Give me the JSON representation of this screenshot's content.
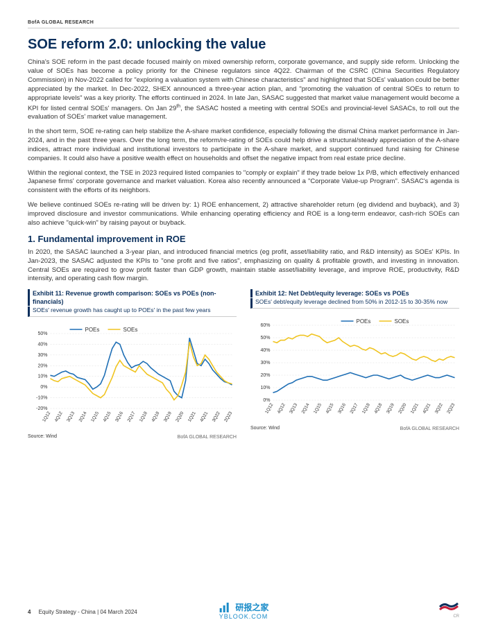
{
  "header": {
    "brand": "BofA GLOBAL RESEARCH"
  },
  "title": "SOE reform 2.0: unlocking the value",
  "paragraphs": [
    "China's SOE reform in the past decade focused mainly on mixed ownership reform, corporate governance, and supply side reform. Unlocking the value of SOEs has become a policy priority for the Chinese regulators since 4Q22. Chairman of the CSRC (China Securities Regulatory Commission) in Nov-2022 called for \"exploring a valuation system with Chinese characteristics\" and highlighted that SOEs' valuation could be better appreciated by the market. In Dec-2022, SHEX announced a three-year action plan, and \"promoting the valuation of central SOEs to return to appropriate levels\" was a key priority. The efforts continued in 2024. In late Jan, SASAC suggested that market value management would become a KPI for listed central SOEs' managers. On Jan 29",
    ", the SASAC hosted a meeting with central SOEs and provincial-level SASACs, to roll out the evaluation of SOEs' market value management.",
    "In the short term, SOE re-rating can help stabilize the A-share market confidence, especially following the dismal China market performance in Jan-2024, and in the past three years. Over the long term, the reform/re-rating of SOEs could help drive a structural/steady appreciation of the A-share indices, attract more individual and institutional investors to participate in the A-share market, and support continued fund raising for Chinese companies. It could also have a positive wealth effect on households and offset the negative impact from real estate price decline.",
    "Within the regional context, the TSE in 2023 required listed companies to \"comply or explain\" if they trade below 1x P/B, which effectively enhanced Japanese firms' corporate governance and market valuation. Korea also recently announced a \"Corporate Value-up Program\". SASAC's agenda is consistent with the efforts of its neighbors.",
    "We believe continued SOEs re-rating will be driven by: 1) ROE enhancement, 2) attractive shareholder return (eg dividend and buyback), and 3) improved disclosure and investor communications. While enhancing operating efficiency and ROE is a long-term endeavor, cash-rich SOEs can also achieve \"quick-win\" by raising payout or buyback."
  ],
  "p1_sup": "th",
  "section1": {
    "heading": "1.  Fundamental improvement in ROE",
    "body": "In 2020, the SASAC launched a 3-year plan, and introduced financial metrics (eg profit, asset/liability ratio, and R&D intensity) as SOEs' KPIs. In Jan-2023, the SASAC adjusted the KPIs to \"one profit and five ratios\", emphasizing on quality & profitable growth, and investing in innovation. Central SOEs are required to grow profit faster than GDP growth, maintain stable asset/liability leverage, and improve ROE, productivity, R&D intensity, and operating cash flow margin."
  },
  "chart11": {
    "title": "Exhibit 11: Revenue growth comparison: SOEs vs POEs (non-financials)",
    "subtitle": "SOEs' revenue growth has caught up to POEs' in the past few years",
    "type": "line",
    "legend": {
      "poe": "POEs",
      "soe": "SOEs"
    },
    "x_labels": [
      "1Q12",
      "4Q12",
      "3Q13",
      "2Q14",
      "1Q15",
      "4Q15",
      "3Q16",
      "2Q17",
      "1Q18",
      "4Q18",
      "3Q19",
      "2Q20",
      "1Q21",
      "4Q21",
      "3Q22",
      "2Q23"
    ],
    "y_ticks": [
      "-20%",
      "-10%",
      "0%",
      "10%",
      "20%",
      "30%",
      "40%",
      "50%"
    ],
    "ylim": [
      -20,
      50
    ],
    "poe_color": "#1f6fb5",
    "soe_color": "#f0c420",
    "grid_color": "#dddddd",
    "line_width": 1.6,
    "poe_values": [
      11,
      10,
      12,
      14,
      15,
      13,
      12,
      9,
      8,
      7,
      3,
      -2,
      0,
      3,
      11,
      24,
      36,
      42,
      40,
      30,
      23,
      18,
      20,
      21,
      24,
      22,
      18,
      15,
      12,
      10,
      8,
      6,
      -4,
      -8,
      -10,
      6,
      46,
      34,
      22,
      20,
      26,
      22,
      16,
      12,
      8,
      5,
      4,
      2
    ],
    "soe_values": [
      8,
      6,
      5,
      8,
      9,
      10,
      8,
      6,
      4,
      2,
      -2,
      -6,
      -8,
      -10,
      -7,
      1,
      9,
      19,
      25,
      20,
      18,
      16,
      14,
      20,
      16,
      12,
      10,
      8,
      6,
      4,
      -2,
      -6,
      -12,
      -8,
      2,
      14,
      42,
      28,
      20,
      22,
      30,
      26,
      20,
      14,
      10,
      6,
      4,
      3
    ],
    "source": "Source: Wind",
    "source_right": "BofA GLOBAL RESEARCH"
  },
  "chart12": {
    "title": "Exhibit 12: Net Debt/equity leverage: SOEs vs POEs",
    "subtitle": "SOEs' debt/equity leverage declined from 50% in 2012-15 to 30-35% now",
    "type": "line",
    "legend": {
      "poe": "POEs",
      "soe": "SOEs"
    },
    "x_labels": [
      "1Q12",
      "4Q12",
      "3Q13",
      "2Q14",
      "1Q15",
      "4Q15",
      "3Q16",
      "2Q17",
      "1Q18",
      "4Q18",
      "3Q19",
      "2Q20",
      "1Q21",
      "4Q21",
      "3Q22",
      "2Q23"
    ],
    "y_ticks": [
      "0%",
      "10%",
      "20%",
      "30%",
      "40%",
      "50%",
      "60%"
    ],
    "ylim": [
      0,
      60
    ],
    "poe_color": "#1f6fb5",
    "soe_color": "#f0c420",
    "grid_color": "#dddddd",
    "line_width": 1.6,
    "poe_values": [
      6,
      7,
      9,
      11,
      13,
      14,
      16,
      17,
      18,
      19,
      19,
      18,
      17,
      16,
      16,
      17,
      18,
      19,
      20,
      21,
      22,
      21,
      20,
      19,
      18,
      19,
      20,
      20,
      19,
      18,
      17,
      18,
      19,
      20,
      18,
      17,
      16,
      17,
      18,
      19,
      20,
      19,
      18,
      18,
      19,
      20,
      19,
      18
    ],
    "soe_values": [
      47,
      46,
      48,
      48,
      50,
      49,
      51,
      52,
      52,
      51,
      53,
      52,
      51,
      48,
      46,
      47,
      48,
      50,
      47,
      45,
      43,
      44,
      43,
      41,
      40,
      42,
      41,
      39,
      37,
      38,
      36,
      35,
      36,
      38,
      37,
      35,
      33,
      32,
      34,
      35,
      34,
      32,
      31,
      33,
      32,
      34,
      35,
      34
    ],
    "source": "Source: Wind",
    "source_right": "BofA GLOBAL RESEARCH"
  },
  "footer": {
    "page": "4",
    "meta": "Equity Strategy - China | 04 March 2024",
    "watermark_zh": "研报之家",
    "watermark_url": "YBLOOK.COM",
    "cr": "CR"
  }
}
